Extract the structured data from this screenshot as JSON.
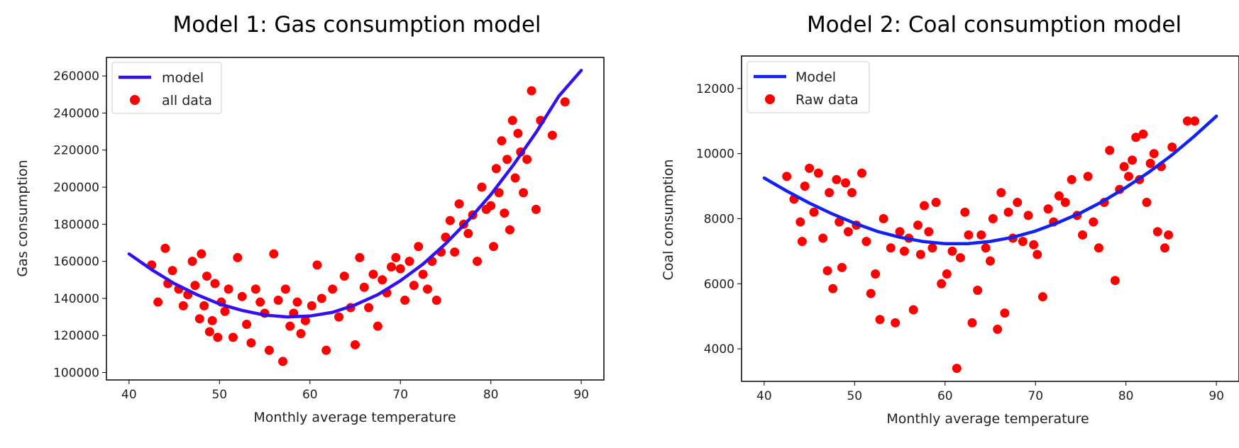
{
  "chart_data": [
    {
      "type": "scatter",
      "title": "Model 1: Gas consumption model",
      "xlabel": "Monthly average temperature",
      "ylabel": "Gas consumption",
      "xlim": [
        37.5,
        92.5
      ],
      "ylim": [
        96000,
        270000
      ],
      "x_ticks": [
        40,
        50,
        60,
        70,
        80,
        90
      ],
      "y_ticks": [
        100000,
        120000,
        140000,
        160000,
        180000,
        200000,
        220000,
        240000,
        260000
      ],
      "grid": false,
      "legend_position": "top-left",
      "colors": {
        "model": "#3311ee",
        "data": "#ff0000"
      },
      "series": [
        {
          "name": "model",
          "type": "line",
          "x": [
            40,
            42.5,
            45,
            47.5,
            50,
            52.5,
            55,
            57.5,
            60,
            62.5,
            65,
            67.5,
            70,
            72.5,
            75,
            77.5,
            80,
            82.5,
            85,
            87.5,
            90
          ],
          "y": [
            164000,
            155500,
            148000,
            142000,
            137000,
            133500,
            131000,
            130000,
            130500,
            132500,
            136500,
            142000,
            149500,
            158500,
            169500,
            182000,
            196000,
            212000,
            229500,
            249000,
            263000
          ]
        },
        {
          "name": "all data",
          "type": "scatter",
          "x": [
            42.5,
            43.2,
            44.0,
            44.3,
            44.8,
            45.5,
            46.0,
            46.5,
            47.0,
            47.3,
            47.8,
            48.0,
            48.3,
            48.6,
            48.9,
            49.2,
            49.5,
            49.8,
            50.2,
            50.6,
            51.0,
            51.5,
            52.0,
            52.5,
            53.0,
            53.5,
            54.0,
            54.5,
            55.0,
            55.5,
            56.0,
            56.5,
            57.0,
            57.3,
            57.8,
            58.2,
            58.6,
            59.0,
            59.5,
            60.2,
            60.8,
            61.3,
            61.8,
            62.5,
            63.2,
            63.8,
            64.5,
            65.0,
            65.5,
            66.0,
            66.5,
            67.0,
            67.5,
            68.0,
            68.5,
            69.0,
            69.5,
            70.0,
            70.5,
            71.0,
            71.5,
            72.0,
            72.5,
            73.0,
            73.5,
            74.0,
            74.5,
            75.0,
            75.5,
            76.0,
            76.5,
            77.0,
            77.5,
            78.0,
            78.5,
            79.0,
            79.5,
            80.0,
            80.3,
            80.6,
            80.9,
            81.2,
            81.5,
            81.8,
            82.1,
            82.4,
            82.7,
            83.0,
            83.3,
            83.6,
            84.0,
            84.5,
            85.0,
            85.5,
            86.8,
            88.2
          ],
          "y": [
            158000,
            138000,
            167000,
            148000,
            155000,
            145000,
            136000,
            142000,
            160000,
            147000,
            129000,
            164000,
            136000,
            152000,
            122000,
            128000,
            148000,
            119000,
            138000,
            133000,
            145000,
            119000,
            162000,
            141000,
            126000,
            116000,
            145000,
            138000,
            132000,
            112000,
            164000,
            139000,
            106000,
            145000,
            125000,
            132000,
            138000,
            121000,
            128000,
            136000,
            158000,
            140000,
            112000,
            145000,
            130000,
            152000,
            135000,
            115000,
            162000,
            146000,
            135000,
            153000,
            125000,
            150000,
            143000,
            157000,
            162000,
            156000,
            139000,
            160000,
            147000,
            168000,
            153000,
            145000,
            160000,
            139000,
            165000,
            173000,
            182000,
            165000,
            191000,
            180000,
            175000,
            185000,
            160000,
            200000,
            188000,
            190000,
            168000,
            210000,
            197000,
            225000,
            186000,
            215000,
            177000,
            236000,
            205000,
            229000,
            219000,
            197000,
            215000,
            252000,
            188000,
            236000,
            228000,
            246000
          ]
        }
      ]
    },
    {
      "type": "scatter",
      "title": "Model 2: Coal consumption model",
      "xlabel": "Monthly average temperature",
      "ylabel": "Coal consumption",
      "xlim": [
        37.5,
        92.5
      ],
      "ylim": [
        3000,
        13000
      ],
      "x_ticks": [
        40,
        50,
        60,
        70,
        80,
        90
      ],
      "y_ticks": [
        4000,
        6000,
        8000,
        10000,
        12000
      ],
      "grid": false,
      "legend_position": "top-left",
      "colors": {
        "model": "#1122ee",
        "data": "#ff0000"
      },
      "series": [
        {
          "name": "Model",
          "type": "line",
          "x": [
            40,
            42.5,
            45,
            47.5,
            50,
            52.5,
            55,
            57.5,
            60,
            62.5,
            65,
            67.5,
            70,
            72.5,
            75,
            77.5,
            80,
            82.5,
            85,
            87.5,
            90
          ],
          "y": [
            9250,
            8850,
            8480,
            8150,
            7860,
            7610,
            7430,
            7300,
            7230,
            7230,
            7300,
            7430,
            7620,
            7880,
            8180,
            8540,
            8960,
            9420,
            9940,
            10520,
            11150
          ]
        },
        {
          "name": "Raw data",
          "type": "scatter",
          "x": [
            42.5,
            43.3,
            44.0,
            44.2,
            44.5,
            45.0,
            45.5,
            46.0,
            46.5,
            47.0,
            47.2,
            47.6,
            48.0,
            48.3,
            48.6,
            49.0,
            49.3,
            49.7,
            50.2,
            50.8,
            51.3,
            51.8,
            52.3,
            52.8,
            53.2,
            54.0,
            54.5,
            55.0,
            55.5,
            56.0,
            56.5,
            57.0,
            57.3,
            57.7,
            58.2,
            58.6,
            59.0,
            59.6,
            60.2,
            60.8,
            61.3,
            61.7,
            62.2,
            62.6,
            63.0,
            63.6,
            64.0,
            64.5,
            65.0,
            65.3,
            65.8,
            66.2,
            66.6,
            67.0,
            67.5,
            68.0,
            68.6,
            69.2,
            69.8,
            70.2,
            70.8,
            71.4,
            72.0,
            72.6,
            73.3,
            74.0,
            74.6,
            75.2,
            75.8,
            76.4,
            77.0,
            77.6,
            78.2,
            78.8,
            79.3,
            79.8,
            80.3,
            80.7,
            81.1,
            81.5,
            81.9,
            82.3,
            82.7,
            83.1,
            83.5,
            83.9,
            84.3,
            84.7,
            85.1,
            86.8,
            87.6
          ],
          "y": [
            9300,
            8600,
            7900,
            7300,
            9000,
            9550,
            8200,
            9400,
            7400,
            6400,
            8800,
            5850,
            9200,
            7900,
            6500,
            9100,
            7600,
            8800,
            7800,
            9400,
            7300,
            5700,
            6300,
            4900,
            8000,
            7100,
            4800,
            7600,
            7000,
            7400,
            5200,
            7800,
            6900,
            8400,
            7600,
            7100,
            8500,
            6000,
            6300,
            7000,
            3400,
            6800,
            8200,
            7500,
            4800,
            5800,
            7500,
            7100,
            6700,
            8000,
            4600,
            8800,
            5100,
            8200,
            7400,
            8500,
            7300,
            8100,
            7200,
            6900,
            5600,
            8300,
            7900,
            8700,
            8500,
            9200,
            8100,
            7500,
            9300,
            7900,
            7100,
            8500,
            10100,
            6100,
            8900,
            9600,
            9300,
            9800,
            10500,
            9200,
            10600,
            8500,
            9700,
            10000,
            7600,
            9600,
            7100,
            7500,
            10200,
            11000,
            11000
          ]
        }
      ]
    }
  ]
}
